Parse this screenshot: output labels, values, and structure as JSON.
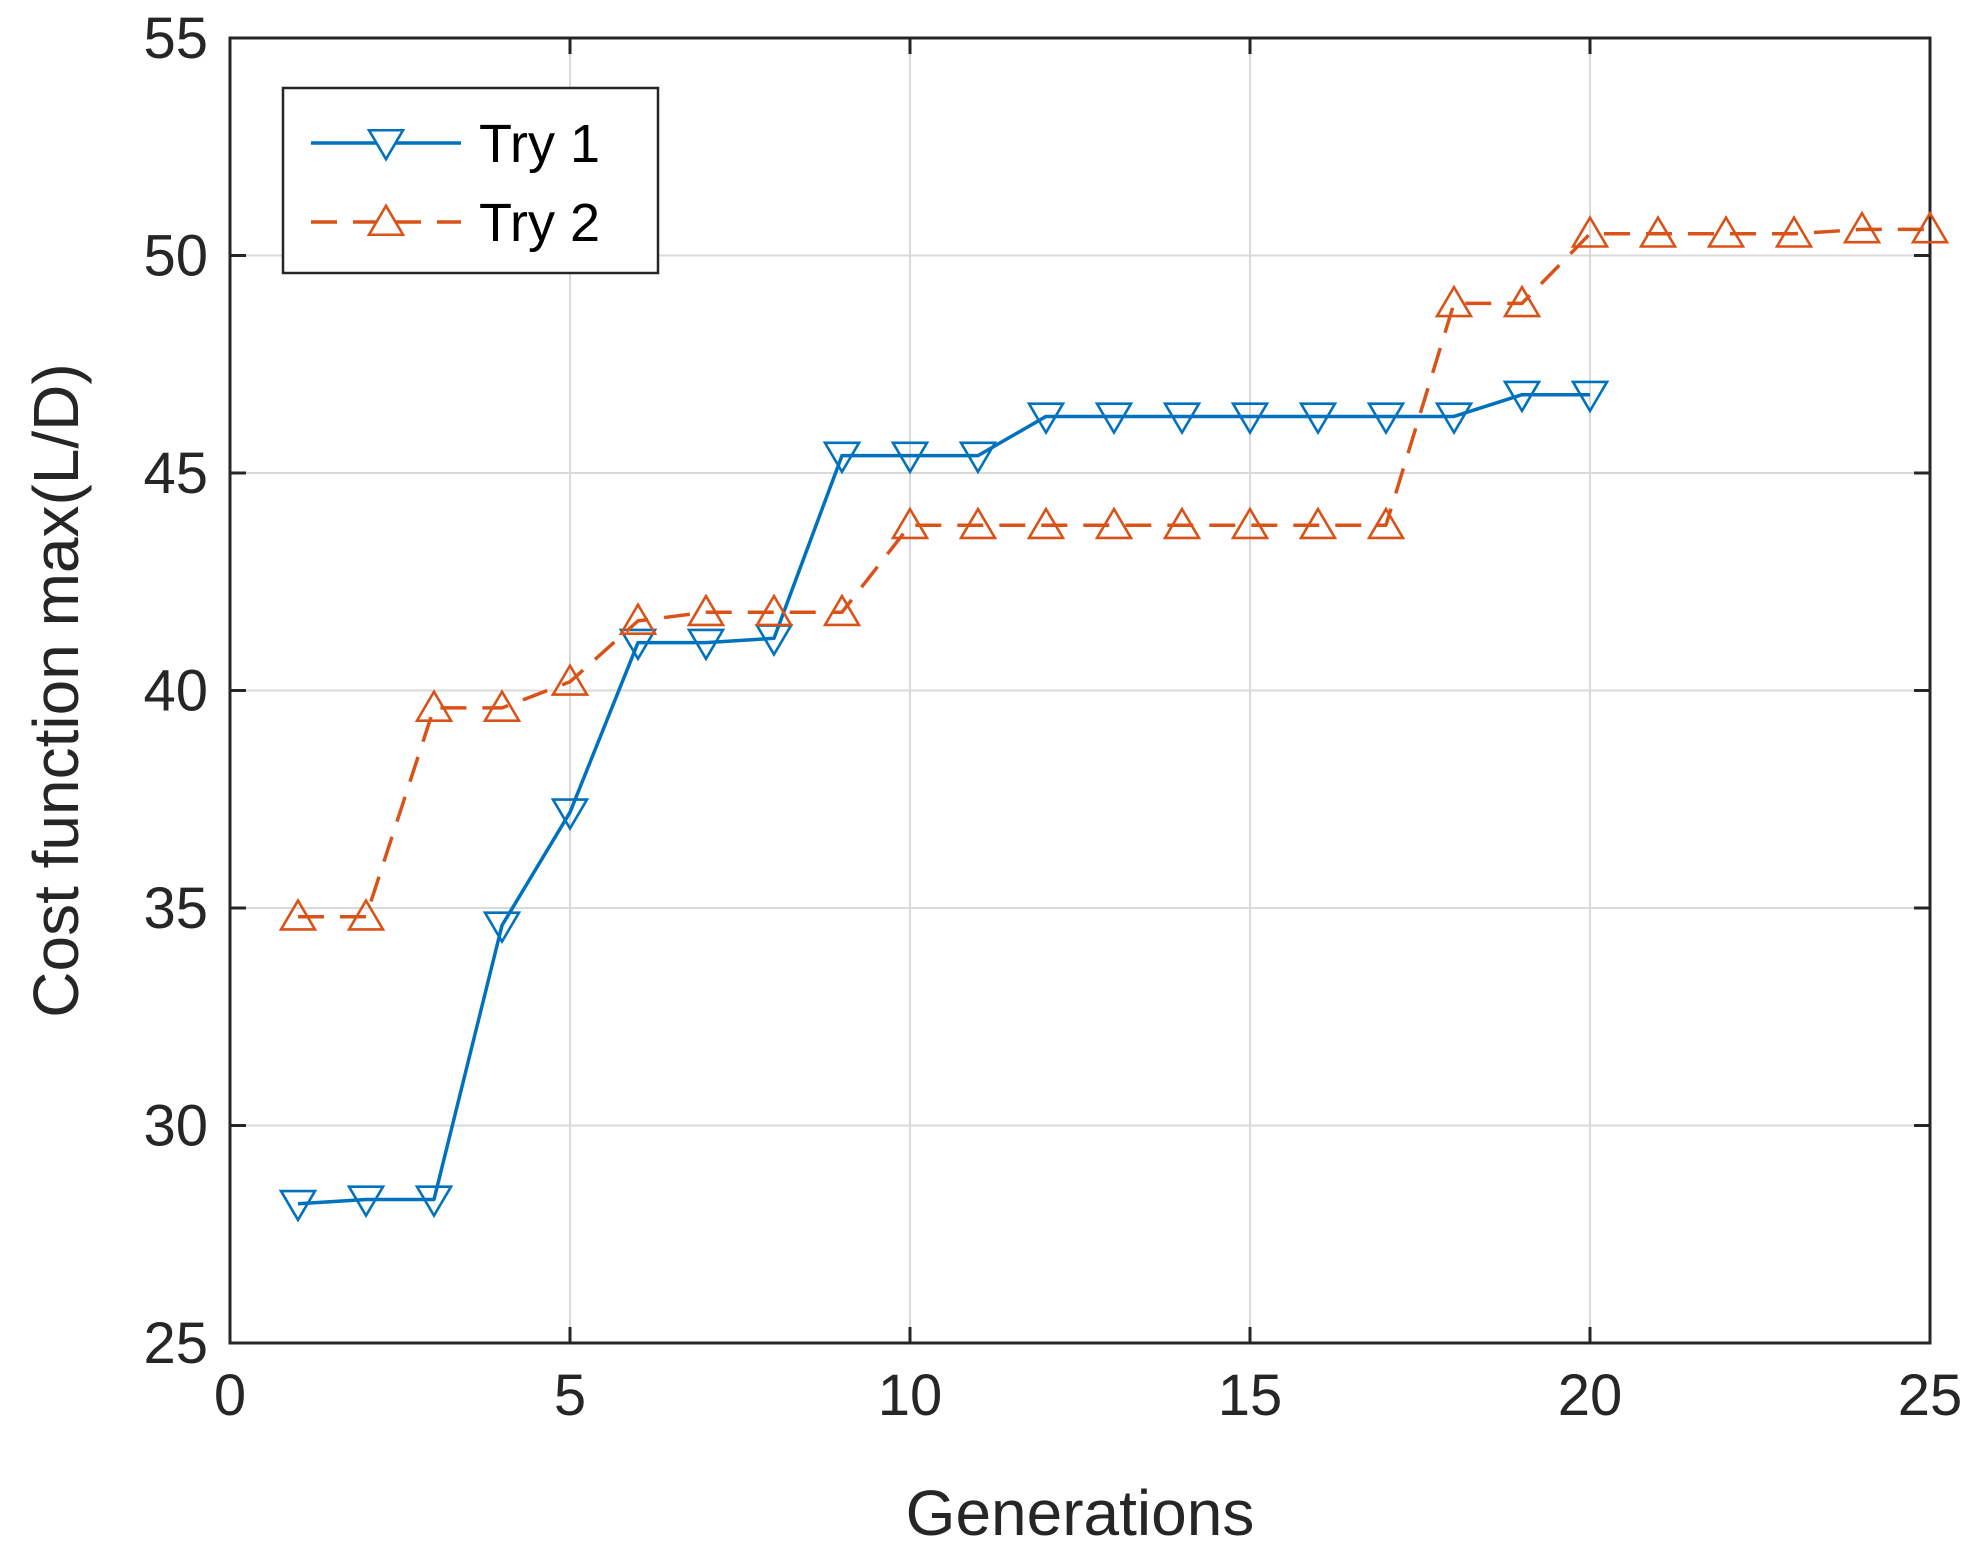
{
  "chart_data": {
    "type": "line",
    "title": "",
    "xlabel": "Generations",
    "ylabel": "Cost function max(L/D)",
    "xlim": [
      0,
      25
    ],
    "ylim": [
      25,
      55
    ],
    "xticks": [
      0,
      5,
      10,
      15,
      20,
      25
    ],
    "yticks": [
      25,
      30,
      35,
      40,
      45,
      50,
      55
    ],
    "xtick_labels": [
      "0",
      "5",
      "10",
      "15",
      "20",
      "25"
    ],
    "ytick_labels": [
      "25",
      "30",
      "35",
      "40",
      "45",
      "50",
      "55"
    ],
    "grid": true,
    "legend_position": "top-left",
    "series": [
      {
        "name": "Try 1",
        "color": "#0072BD",
        "line_style": "solid",
        "marker": "triangle-down",
        "x": [
          1,
          2,
          3,
          4,
          5,
          6,
          7,
          8,
          9,
          10,
          11,
          12,
          13,
          14,
          15,
          16,
          17,
          18,
          19,
          20
        ],
        "y": [
          28.2,
          28.3,
          28.3,
          34.6,
          37.2,
          41.1,
          41.1,
          41.2,
          45.4,
          45.4,
          45.4,
          46.3,
          46.3,
          46.3,
          46.3,
          46.3,
          46.3,
          46.3,
          46.8,
          46.8
        ]
      },
      {
        "name": "Try 2",
        "color": "#D95319",
        "line_style": "dashed",
        "marker": "triangle-up",
        "x": [
          1,
          2,
          3,
          4,
          5,
          6,
          7,
          8,
          9,
          10,
          11,
          12,
          13,
          14,
          15,
          16,
          17,
          18,
          19,
          20,
          21,
          22,
          23,
          24,
          25
        ],
        "y": [
          34.8,
          34.8,
          39.6,
          39.6,
          40.2,
          41.6,
          41.8,
          41.8,
          41.8,
          43.8,
          43.8,
          43.8,
          43.8,
          43.8,
          43.8,
          43.8,
          43.8,
          48.9,
          48.9,
          50.5,
          50.5,
          50.5,
          50.5,
          50.6,
          50.6
        ]
      }
    ]
  }
}
